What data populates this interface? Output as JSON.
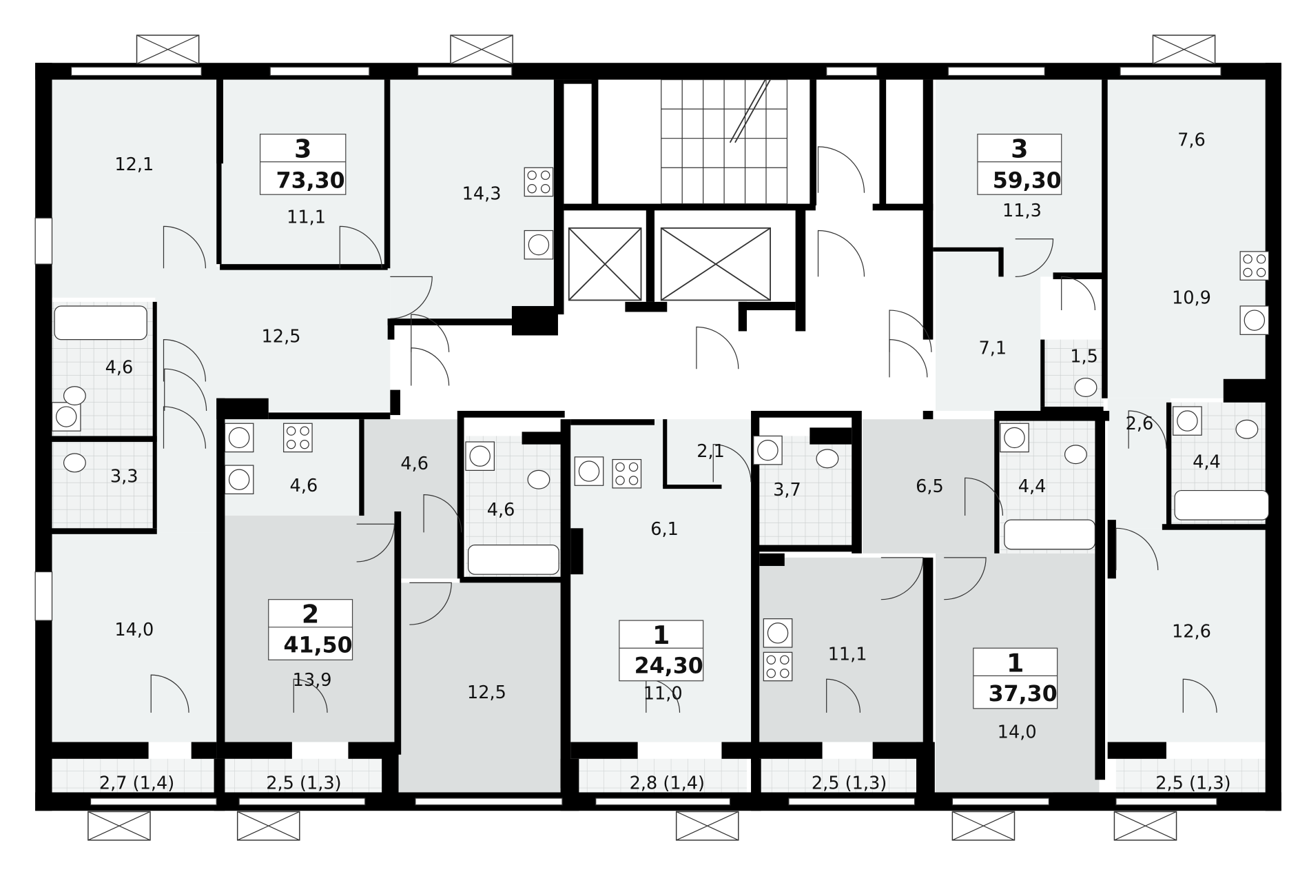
{
  "colors": {
    "wall": "#000000",
    "room_light": "#eef2f2",
    "room_grey": "#dcdfdf",
    "corridor": "#ffffff",
    "tile_line": "#c8cccc"
  },
  "apartments": [
    {
      "rooms": "3",
      "area": "73,30"
    },
    {
      "rooms": "3",
      "area": "59,30"
    },
    {
      "rooms": "2",
      "area": "41,50"
    },
    {
      "rooms": "1",
      "area": "24,30"
    },
    {
      "rooms": "1",
      "area": "37,30"
    }
  ],
  "room_areas": {
    "a1_room_left": "12,1",
    "a1_room_mid": "11,1",
    "a1_kitchen": "14,3",
    "a1_hall": "12,5",
    "a1_bath": "4,6",
    "a1_wc": "3,3",
    "a1_room_bottom": "14,0",
    "a2_room_top": "7,6",
    "a2_room_mid": "11,3",
    "a2_kitchen": "10,9",
    "a2_hall": "7,1",
    "a2_wc": "1,5",
    "a2_corridor": "2,6",
    "a2_bath": "4,4",
    "a2_room_bottom": "12,6",
    "a3_kitchen": "4,6",
    "a3_hall": "4,6",
    "a3_bath": "4,6",
    "a3_room": "13,9",
    "a3_room2": "12,5",
    "a4_closet": "2,1",
    "a4_kitchen": "6,1",
    "a4_bath": "3,7",
    "a4_room": "11,0",
    "a5_kitchen": "11,1",
    "a5_hall": "6,5",
    "a5_bath": "4,4",
    "a5_room": "14,0"
  },
  "balconies": [
    "2,7 (1,4)",
    "2,5 (1,3)",
    "2,8 (1,4)",
    "2,5 (1,3)",
    "2,5 (1,3)"
  ]
}
